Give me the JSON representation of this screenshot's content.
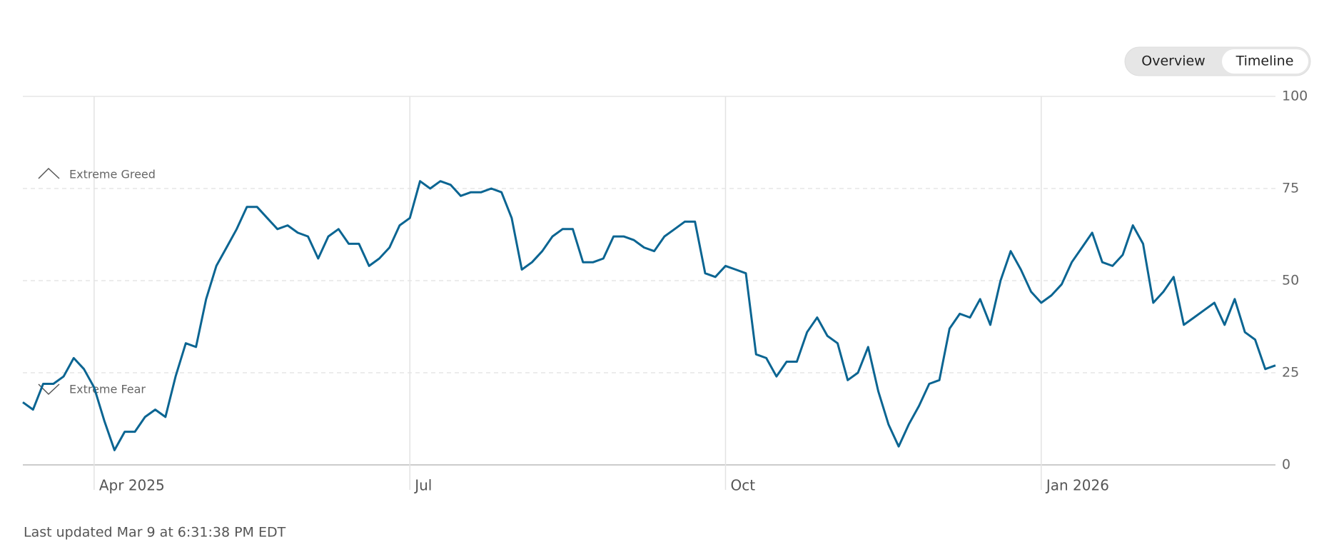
{
  "chart_data": {
    "type": "line",
    "categories": [
      null,
      null,
      null,
      null,
      null,
      null,
      null,
      "Apr 2025",
      null,
      null,
      null,
      null,
      null,
      null,
      null,
      null,
      null,
      null,
      null,
      null,
      null,
      null,
      null,
      null,
      null,
      null,
      null,
      null,
      null,
      null,
      null,
      null,
      null,
      null,
      null,
      null,
      null,
      null,
      "Jul",
      null,
      null,
      null,
      null,
      null,
      null,
      null,
      null,
      null,
      null,
      null,
      null,
      null,
      null,
      null,
      null,
      null,
      null,
      null,
      null,
      null,
      null,
      null,
      null,
      null,
      null,
      null,
      null,
      null,
      null,
      "Oct",
      null,
      null,
      null,
      null,
      null,
      null,
      null,
      null,
      null,
      null,
      null,
      null,
      null,
      null,
      null,
      null,
      null,
      null,
      null,
      null,
      null,
      null,
      null,
      null,
      null,
      null,
      null,
      null,
      null,
      null,
      "Jan 2026",
      null,
      null,
      null,
      null,
      null,
      null,
      null,
      null,
      null,
      null,
      null,
      null,
      null,
      null,
      null,
      null,
      null,
      null,
      null,
      null,
      null,
      null,
      null
    ],
    "values": [
      17,
      15,
      22,
      22,
      24,
      29,
      26,
      21,
      12,
      4,
      9,
      9,
      13,
      15,
      13,
      24,
      33,
      32,
      45,
      54,
      59,
      64,
      70,
      70,
      67,
      64,
      65,
      63,
      62,
      56,
      62,
      64,
      60,
      60,
      54,
      56,
      59,
      65,
      67,
      77,
      75,
      77,
      76,
      73,
      74,
      74,
      75,
      74,
      67,
      53,
      55,
      58,
      62,
      64,
      64,
      55,
      55,
      56,
      62,
      62,
      61,
      59,
      58,
      62,
      64,
      66,
      66,
      52,
      51,
      54,
      53,
      52,
      30,
      29,
      24,
      28,
      28,
      36,
      40,
      35,
      33,
      23,
      25,
      32,
      20,
      11,
      5,
      11,
      16,
      22,
      23,
      37,
      41,
      40,
      45,
      38,
      50,
      58,
      53,
      47,
      44,
      46,
      49,
      55,
      59,
      63,
      55,
      54,
      57,
      65,
      60,
      44,
      47,
      51,
      38,
      40,
      42,
      44,
      38,
      45,
      36,
      34,
      26,
      27
    ],
    "color": "#0b6592",
    "ylim": [
      0,
      100
    ],
    "yticks": [
      0,
      25,
      50,
      75,
      100
    ],
    "grid": true,
    "annotations": [
      "Extreme Greed",
      "Extreme Fear"
    ]
  },
  "controls": [
    "Overview",
    "Timeline"
  ],
  "footer": "Last updated Mar 9 at 6:31:38 PM EDT"
}
